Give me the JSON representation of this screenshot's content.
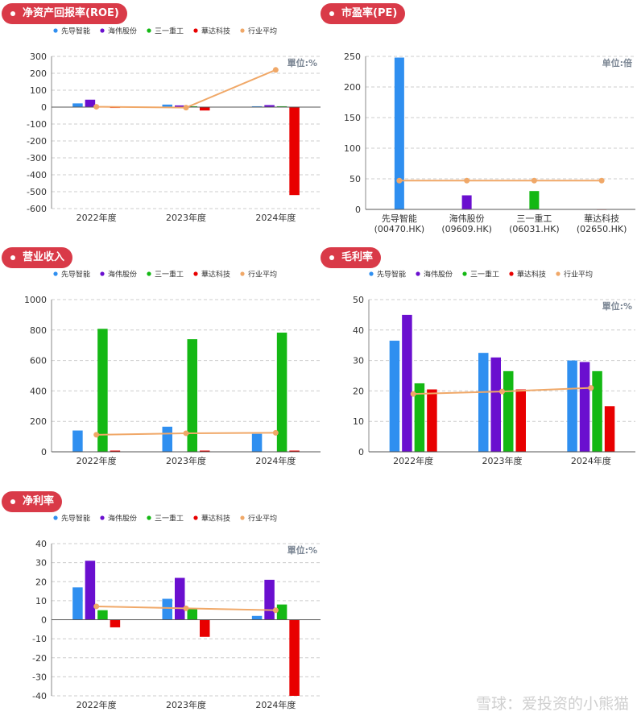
{
  "colors": {
    "header_bg": "#d93a48",
    "axis_text": "#333333",
    "grid": "#cccccc",
    "unit_text": "#7a8593",
    "watermark": "#cfcfcf"
  },
  "legend_items": [
    {
      "name": "先导智能",
      "color": "#2f8ff0"
    },
    {
      "name": "海伟股份",
      "color": "#6a0fcf"
    },
    {
      "name": "三一重工",
      "color": "#14b814"
    },
    {
      "name": "華达科技",
      "color": "#e80000"
    },
    {
      "name": "行业平均",
      "color": "#f0a868"
    }
  ],
  "watermark": "雪球：爱投资的小熊猫",
  "chart_data": [
    {
      "id": "roe",
      "type": "bar",
      "title": "净资产回报率(ROE)",
      "unit": "單位:%",
      "categories": [
        "2022年度",
        "2023年度",
        "2024年度"
      ],
      "ylim": [
        -600,
        300
      ],
      "yticks": [
        300,
        200,
        100,
        0,
        -100,
        -200,
        -300,
        -400,
        -500,
        -600
      ],
      "grid": true,
      "legend": "top",
      "series": [
        {
          "name": "先导智能",
          "values": [
            22,
            15,
            5
          ]
        },
        {
          "name": "海伟股份",
          "values": [
            44,
            10,
            12
          ]
        },
        {
          "name": "三一重工",
          "values": [
            5,
            5,
            5
          ]
        },
        {
          "name": "華达科技",
          "values": [
            -5,
            -20,
            -520
          ]
        }
      ],
      "line": {
        "name": "行业平均",
        "values": [
          2,
          -3,
          220
        ]
      }
    },
    {
      "id": "pe",
      "type": "bar",
      "title": "市盈率(PE)",
      "unit": "单位:倍",
      "categories": [
        "先导智能\n(00470.HK)",
        "海伟股份\n(09609.HK)",
        "三一重工\n(06031.HK)",
        "華达科技\n(02650.HK)"
      ],
      "ylim": [
        0,
        250
      ],
      "yticks": [
        250,
        200,
        150,
        100,
        50,
        0
      ],
      "grid": true,
      "legend": "none",
      "series": [
        {
          "name": "先导智能",
          "values": [
            248,
            null,
            null,
            null
          ]
        },
        {
          "name": "海伟股份",
          "values": [
            null,
            23,
            null,
            null
          ]
        },
        {
          "name": "三一重工",
          "values": [
            null,
            null,
            30,
            null
          ]
        },
        {
          "name": "華达科技",
          "values": [
            null,
            null,
            null,
            0
          ]
        }
      ],
      "line": {
        "name": "行业平均",
        "values": [
          47,
          47,
          47,
          47
        ]
      }
    },
    {
      "id": "revenue",
      "type": "bar",
      "title": "营业收入",
      "unit": "",
      "categories": [
        "2022年度",
        "2023年度",
        "2024年度"
      ],
      "ylim": [
        0,
        1000
      ],
      "yticks": [
        1000,
        800,
        600,
        400,
        200,
        0
      ],
      "grid": true,
      "legend": "top",
      "series": [
        {
          "name": "先导智能",
          "values": [
            140,
            165,
            118
          ]
        },
        {
          "name": "海伟股份",
          "values": [
            2,
            2,
            2
          ]
        },
        {
          "name": "三一重工",
          "values": [
            808,
            740,
            783
          ]
        },
        {
          "name": "華达科技",
          "values": [
            8,
            8,
            8
          ]
        }
      ],
      "line": {
        "name": "行业平均",
        "values": [
          112,
          122,
          125
        ]
      }
    },
    {
      "id": "gross",
      "type": "bar",
      "title": "毛利率",
      "unit": "單位:%",
      "categories": [
        "2022年度",
        "2023年度",
        "2024年度"
      ],
      "ylim": [
        0,
        50
      ],
      "yticks": [
        50,
        40,
        30,
        20,
        10,
        0
      ],
      "grid": true,
      "legend": "top",
      "series": [
        {
          "name": "先导智能",
          "values": [
            36.5,
            32.5,
            30
          ]
        },
        {
          "name": "海伟股份",
          "values": [
            45,
            31,
            29.5
          ]
        },
        {
          "name": "三一重工",
          "values": [
            22.5,
            26.5,
            26.5
          ]
        },
        {
          "name": "華达科技",
          "values": [
            20.5,
            20.5,
            15
          ]
        }
      ],
      "line": {
        "name": "行业平均",
        "values": [
          19,
          19.8,
          21
        ]
      }
    },
    {
      "id": "net",
      "type": "bar",
      "title": "净利率",
      "unit": "單位:%",
      "categories": [
        "2022年度",
        "2023年度",
        "2024年度"
      ],
      "ylim": [
        -40,
        40
      ],
      "yticks": [
        40,
        30,
        20,
        10,
        0,
        -10,
        -20,
        -30,
        -40
      ],
      "grid": true,
      "legend": "top",
      "series": [
        {
          "name": "先导智能",
          "values": [
            17,
            11,
            2
          ]
        },
        {
          "name": "海伟股份",
          "values": [
            31,
            22,
            21
          ]
        },
        {
          "name": "三一重工",
          "values": [
            5,
            6,
            8
          ]
        },
        {
          "name": "華达科技",
          "values": [
            -4,
            -9,
            -40
          ]
        }
      ],
      "line": {
        "name": "行业平均",
        "values": [
          7,
          6,
          5
        ]
      }
    }
  ]
}
